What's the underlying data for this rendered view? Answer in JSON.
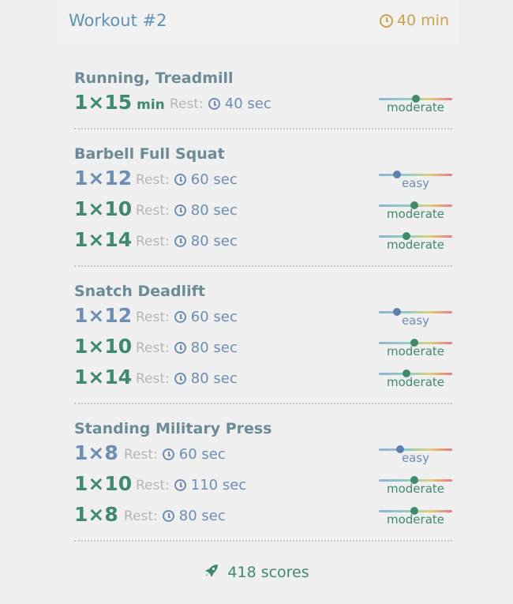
{
  "workout": {
    "title": "Workout #2",
    "duration": "40 min",
    "duration_icon": "clock-icon"
  },
  "exercises": [
    {
      "name": "Running, Treadmill",
      "sets": [
        {
          "reps": "1×15",
          "unit": "min",
          "rest_label": "Rest:",
          "rest": "40 sec",
          "level": "moderate",
          "level_value": 0.5,
          "color": "green"
        }
      ]
    },
    {
      "name": "Barbell Full Squat",
      "sets": [
        {
          "reps": "1×12",
          "rest_label": "Rest:",
          "rest": "60 sec",
          "level": "easy",
          "level_value": 0.25,
          "color": "blue"
        },
        {
          "reps": "1×10",
          "rest_label": "Rest:",
          "rest": "80 sec",
          "level": "moderate",
          "level_value": 0.48,
          "color": "green"
        },
        {
          "reps": "1×14",
          "rest_label": "Rest:",
          "rest": "80 sec",
          "level": "moderate",
          "level_value": 0.38,
          "color": "green"
        }
      ]
    },
    {
      "name": "Snatch Deadlift",
      "sets": [
        {
          "reps": "1×12",
          "rest_label": "Rest:",
          "rest": "60 sec",
          "level": "easy",
          "level_value": 0.25,
          "color": "blue"
        },
        {
          "reps": "1×10",
          "rest_label": "Rest:",
          "rest": "80 sec",
          "level": "moderate",
          "level_value": 0.48,
          "color": "green"
        },
        {
          "reps": "1×14",
          "rest_label": "Rest:",
          "rest": "80 sec",
          "level": "moderate",
          "level_value": 0.38,
          "color": "green"
        }
      ]
    },
    {
      "name": "Standing Military Press",
      "sets": [
        {
          "reps": "1×8",
          "rest_label": "Rest:",
          "rest": "60 sec",
          "level": "easy",
          "level_value": 0.29,
          "color": "blue"
        },
        {
          "reps": "1×10",
          "rest_label": "Rest:",
          "rest": "110 sec",
          "level": "moderate",
          "level_value": 0.48,
          "color": "green"
        },
        {
          "reps": "1×8",
          "rest_label": "Rest:",
          "rest": "80 sec",
          "level": "moderate",
          "level_value": 0.48,
          "color": "green"
        }
      ]
    }
  ],
  "footer": {
    "scores": "418 scores",
    "icon": "rocket-icon"
  },
  "colors": {
    "green": "#3f8a6d",
    "blue": "#6d8db5",
    "title": "#5e93b7",
    "duration": "#c9a24a"
  }
}
